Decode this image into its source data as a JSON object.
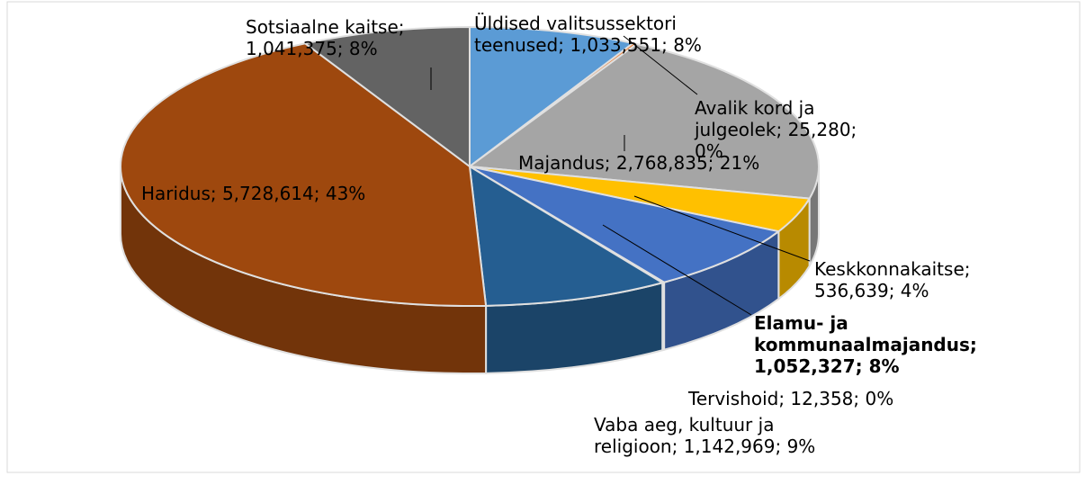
{
  "chart_data": {
    "type": "pie3d",
    "categories": [
      "Üldised valitsussektori teenused",
      "Avalik kord ja julgeolek",
      "Majandus",
      "Keskkonnakaitse",
      "Elamu- ja kommunaalmajandus",
      "Tervishoid",
      "Vaba aeg, kultuur ja religioon",
      "Haridus",
      "Sotsiaalne kaitse"
    ],
    "values": [
      1033551,
      25280,
      2768835,
      536639,
      1052327,
      12358,
      1142969,
      5728614,
      1041375
    ],
    "data_labels": [
      "Üldised valitsussektori teenused; 1,033,551; 8%",
      "Avalik kord ja julgeolek; 25,280; 0%",
      "Majandus; 2,768,835; 21%",
      "Keskkonnakaitse; 536,639; 4%",
      "Elamu- ja kommunaalmajandus; 1,052,327; 8%",
      "Tervishoid; 12,358; 0%",
      "Vaba aeg, kultuur ja religioon; 1,142,969; 9%",
      "Haridus; 5,728,614; 43%",
      "Sotsiaalne kaitse; 1,041,375; 8%"
    ],
    "colors": [
      "#5b9bd5",
      "#ed7d31",
      "#a5a5a5",
      "#ffc000",
      "#4472c4",
      "#70ad47",
      "#255e91",
      "#9e480e",
      "#636363"
    ]
  }
}
